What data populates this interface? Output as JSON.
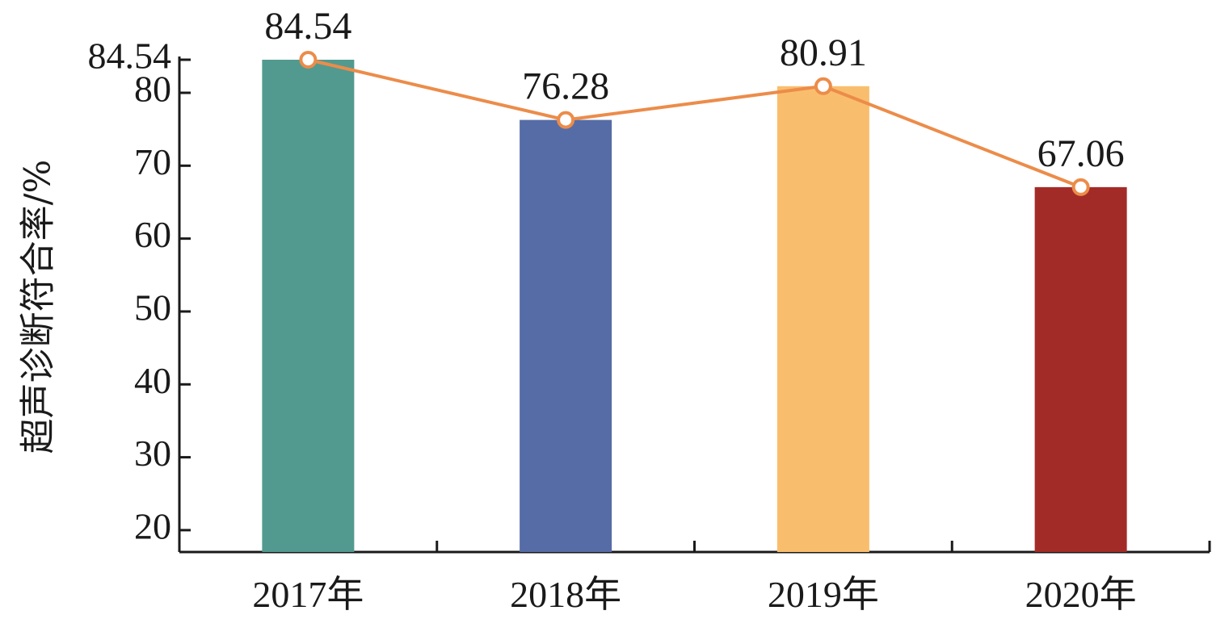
{
  "chart_data": {
    "type": "bar",
    "title": "",
    "xlabel": "",
    "ylabel": "超声诊断符合率/%",
    "categories": [
      "2017年",
      "2018年",
      "2019年",
      "2020年"
    ],
    "values": [
      84.54,
      76.28,
      80.91,
      67.06
    ],
    "bar_colors": [
      "#529a8f",
      "#566ca6",
      "#f9be6d",
      "#a32b27"
    ],
    "line_color": "#ec8c4a",
    "overlay_line": true,
    "data_labels": [
      "84.54",
      "76.28",
      "80.91",
      "67.06"
    ],
    "ylim": [
      17,
      88
    ],
    "yticks": [
      20,
      30,
      40,
      50,
      60,
      70,
      80,
      84.54
    ],
    "ytick_labels": [
      "20",
      "30",
      "40",
      "50",
      "60",
      "70",
      "80",
      "84.54"
    ],
    "grid": false,
    "legend": "none"
  }
}
